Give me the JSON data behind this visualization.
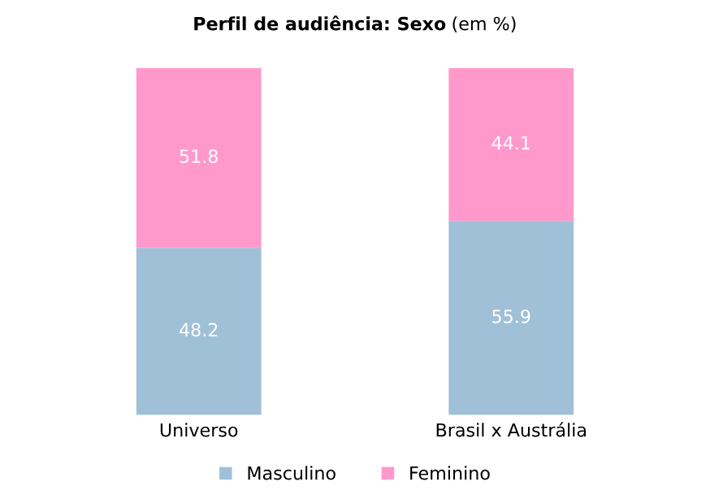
{
  "chart_data": {
    "type": "bar",
    "title": "Perfil de audiência: Sexo",
    "subtitle": "(em %)",
    "categories": [
      "Universo",
      "Brasil x Austrália"
    ],
    "stacked": true,
    "data_labels": true,
    "legend": "bottom",
    "grid": false,
    "series": [
      {
        "name": "Masculino",
        "color": "#a0c0d8",
        "values": [
          48.2,
          55.9
        ]
      },
      {
        "name": "Feminino",
        "color": "#ff99cc",
        "values": [
          51.8,
          44.1
        ]
      }
    ]
  }
}
